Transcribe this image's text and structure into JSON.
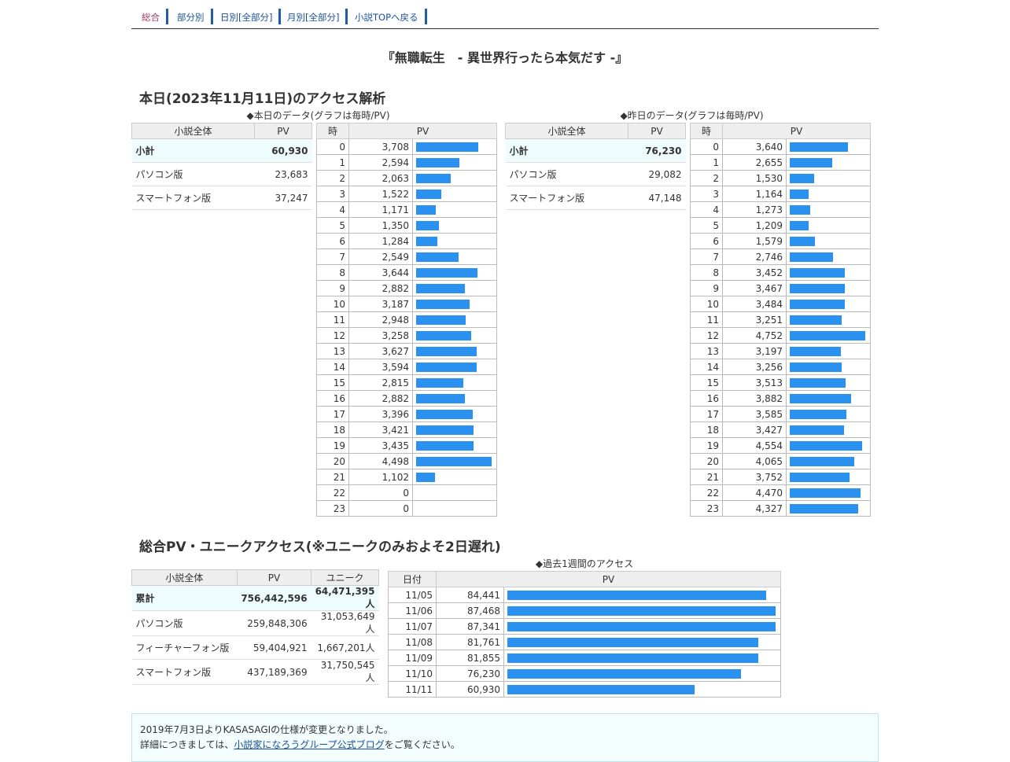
{
  "nav": [
    {
      "label": "総合",
      "current": true
    },
    {
      "label": "部分別"
    },
    {
      "label": "日別[全部分]"
    },
    {
      "label": "月別[全部分]"
    },
    {
      "label": "小説TOPへ戻る"
    }
  ],
  "novel_title": "『無職転生　- 異世界行ったら本気だす -』",
  "today_section": {
    "heading": "本日(2023年11月11日)のアクセス解析",
    "today_caption": "◆本日のデータ(グラフは毎時/PV)",
    "yesterday_caption": "◆昨日のデータ(グラフは毎時/PV)",
    "summary_headers": [
      "小説全体",
      "PV"
    ],
    "hour_headers": [
      "時",
      "PV"
    ],
    "today_summary": [
      {
        "label": "小計",
        "value": "60,930"
      },
      {
        "label": "パソコン版",
        "value": "23,683"
      },
      {
        "label": "スマートフォン版",
        "value": "37,247"
      }
    ],
    "yesterday_summary": [
      {
        "label": "小計",
        "value": "76,230"
      },
      {
        "label": "パソコン版",
        "value": "29,082"
      },
      {
        "label": "スマートフォン版",
        "value": "47,148"
      }
    ],
    "today_hours": [
      "3,708",
      "2,594",
      "2,063",
      "1,522",
      "1,171",
      "1,350",
      "1,284",
      "2,549",
      "3,644",
      "2,882",
      "3,187",
      "2,948",
      "3,258",
      "3,627",
      "3,594",
      "2,815",
      "2,882",
      "3,396",
      "3,421",
      "3,435",
      "4,498",
      "1,102",
      "0",
      "0"
    ],
    "yesterday_hours": [
      "3,640",
      "2,655",
      "1,530",
      "1,164",
      "1,273",
      "1,209",
      "1,579",
      "2,746",
      "3,452",
      "3,467",
      "3,484",
      "3,251",
      "4,752",
      "3,197",
      "3,256",
      "3,513",
      "3,882",
      "3,585",
      "3,427",
      "4,554",
      "4,065",
      "3,752",
      "4,470",
      "4,327"
    ]
  },
  "total_section": {
    "heading": "総合PV・ユニークアクセス(※ユニークのみおよそ2日遅れ)",
    "summary_headers": [
      "小説全体",
      "PV",
      "ユニーク"
    ],
    "summary": [
      {
        "label": "累計",
        "pv": "756,442,596",
        "unique": "64,471,395人"
      },
      {
        "label": "パソコン版",
        "pv": "259,848,306",
        "unique": "31,053,649人"
      },
      {
        "label": "フィーチャーフォン版",
        "pv": "59,404,921",
        "unique": "1,667,201人"
      },
      {
        "label": "スマートフォン版",
        "pv": "437,189,369",
        "unique": "31,750,545人"
      }
    ],
    "week_caption": "◆過去1週間のアクセス",
    "week_headers": [
      "日付",
      "PV"
    ],
    "week": [
      {
        "date": "11/05",
        "pv": "84,441"
      },
      {
        "date": "11/06",
        "pv": "87,468"
      },
      {
        "date": "11/07",
        "pv": "87,341"
      },
      {
        "date": "11/08",
        "pv": "81,761"
      },
      {
        "date": "11/09",
        "pv": "81,855"
      },
      {
        "date": "11/10",
        "pv": "76,230"
      },
      {
        "date": "11/11",
        "pv": "60,930"
      }
    ]
  },
  "notice": {
    "line1": "2019年7月3日よりKASASAGIの仕様が変更となりました。",
    "line2_prefix": "詳細につきましては、",
    "line2_link": "小説家になろうグループ公式ブログ",
    "line2_suffix": "をご覧ください。"
  },
  "colors": {
    "bar": "#2a91f0",
    "nav_border": "#1a5fa8",
    "total_row_bg": "#eefcfd"
  }
}
